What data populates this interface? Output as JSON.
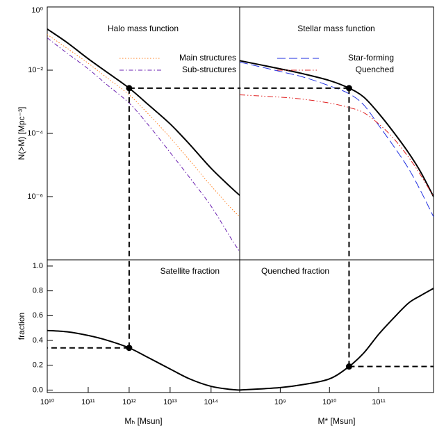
{
  "chart_data": [
    {
      "type": "line",
      "title": "Halo mass function",
      "ylabel": "N(>M) [Mpc⁻³]",
      "xlog": true,
      "ylog": true,
      "xlim": [
        10000000000.0,
        500000000000000.0
      ],
      "ylim": [
        1e-08,
        1
      ],
      "yticks": [
        {
          "value": 1,
          "label": "10⁰"
        },
        {
          "value": 0.01,
          "label": "10⁻²"
        },
        {
          "value": 0.0001,
          "label": "10⁻⁴"
        },
        {
          "value": 1e-06,
          "label": "10⁻⁶"
        }
      ],
      "x": [
        10000000000.0,
        30000000000.0,
        100000000000.0,
        300000000000.0,
        1000000000000.0,
        3000000000000.0,
        10000000000000.0,
        30000000000000.0,
        100000000000000.0,
        300000000000000.0,
        500000000000000.0
      ],
      "series": [
        {
          "color": "#000000",
          "style": "solid",
          "values": [
            0.2,
            0.076,
            0.023,
            0.0083,
            0.0027,
            0.00079,
            0.0002,
            4.5e-05,
            7.9e-06,
            2e-06,
            1.1e-06
          ]
        },
        {
          "name": "Main structures",
          "color": "#ff7f1f",
          "style": "dotted",
          "values": [
            0.135,
            0.05,
            0.0166,
            0.0055,
            0.00166,
            0.0004,
            7.4e-05,
            1.4e-05,
            2.2e-06,
            4.5e-07,
            2.3e-07
          ]
        },
        {
          "name": "Sub-structures",
          "color": "#6a1fb0",
          "style": "dashdot",
          "values": [
            0.105,
            0.035,
            0.011,
            0.0033,
            0.00091,
            0.00018,
            2.5e-05,
            4e-06,
            5e-07,
            5e-08,
            1.8e-08
          ]
        }
      ],
      "marker": {
        "x": 1000000000000.0,
        "y": 0.0027
      },
      "guides": [
        "right",
        "bottom"
      ]
    },
    {
      "type": "line",
      "title": "Stellar mass function",
      "xlog": true,
      "ylog": true,
      "xlim": [
        150000000.0,
        1300000000000.0
      ],
      "ylim": [
        1e-08,
        1
      ],
      "x": [
        150000000.0,
        1000000000.0,
        3000000000.0,
        10000000000.0,
        25000000000.0,
        50000000000.0,
        100000000000.0,
        200000000000.0,
        400000000000.0,
        700000000000.0,
        1300000000000.0
      ],
      "series": [
        {
          "color": "#000000",
          "style": "solid",
          "values": [
            0.02,
            0.011,
            0.0076,
            0.0047,
            0.0027,
            0.0014,
            0.00043,
            0.00011,
            2.5e-05,
            6.3e-06,
            1e-06
          ]
        },
        {
          "name": "Star-forming",
          "color": "#1f2fe0",
          "style": "longdash",
          "values": [
            0.018,
            0.0091,
            0.006,
            0.0032,
            0.0018,
            0.00079,
            0.00018,
            4e-05,
            7.9e-06,
            1.6e-06,
            2.3e-07
          ]
        },
        {
          "name": "Quenched",
          "color": "#e01f1f",
          "style": "dashdotdot",
          "values": [
            0.00166,
            0.0014,
            0.0012,
            0.00091,
            0.00066,
            0.00045,
            0.0002,
            7e-05,
            1.8e-05,
            5e-06,
            1e-06
          ]
        }
      ],
      "marker": {
        "x": 25000000000.0,
        "y": 0.0027
      },
      "guides": [
        "left",
        "bottom"
      ]
    },
    {
      "type": "line",
      "title": "Satellite fraction",
      "ylabel": "fraction",
      "xlabel": "Mₕ [Msun]",
      "xlog": true,
      "ylog": false,
      "xlim": [
        10000000000.0,
        500000000000000.0
      ],
      "ylim": [
        -0.02,
        1.05
      ],
      "xticks": [
        {
          "value": 10000000000.0,
          "label": "10¹⁰"
        },
        {
          "value": 100000000000.0,
          "label": "10¹¹"
        },
        {
          "value": 1000000000000.0,
          "label": "10¹²"
        },
        {
          "value": 10000000000000.0,
          "label": "10¹³"
        },
        {
          "value": 100000000000000.0,
          "label": "10¹⁴"
        }
      ],
      "yticks": [
        {
          "value": 0,
          "label": "0.0"
        },
        0.2,
        0.4,
        0.6,
        0.8,
        {
          "value": 1,
          "label": "1.0"
        }
      ],
      "x": [
        10000000000.0,
        30000000000.0,
        100000000000.0,
        300000000000.0,
        1000000000000.0,
        3000000000000.0,
        10000000000000.0,
        30000000000000.0,
        100000000000000.0,
        300000000000000.0,
        500000000000000.0
      ],
      "series": [
        {
          "color": "#000000",
          "style": "solid",
          "values": [
            0.48,
            0.47,
            0.44,
            0.4,
            0.34,
            0.26,
            0.17,
            0.09,
            0.03,
            0.005,
            0
          ]
        }
      ],
      "marker": {
        "x": 1000000000000.0,
        "y": 0.34
      },
      "guides": [
        "left",
        "top"
      ]
    },
    {
      "type": "line",
      "title": "Quenched fraction",
      "xlabel": "M* [Msun]",
      "xlog": true,
      "ylog": false,
      "xlim": [
        150000000.0,
        1300000000000.0
      ],
      "ylim": [
        -0.02,
        1.05
      ],
      "xticks": [
        {
          "value": 1000000000.0,
          "label": "10⁹"
        },
        {
          "value": 10000000000.0,
          "label": "10¹⁰"
        },
        {
          "value": 100000000000.0,
          "label": "10¹¹"
        }
      ],
      "x": [
        150000000.0,
        1000000000.0,
        3000000000.0,
        10000000000.0,
        25000000000.0,
        50000000000.0,
        100000000000.0,
        200000000000.0,
        400000000000.0,
        700000000000.0,
        1300000000000.0
      ],
      "series": [
        {
          "color": "#000000",
          "style": "solid",
          "values": [
            0,
            0.02,
            0.045,
            0.09,
            0.19,
            0.3,
            0.45,
            0.58,
            0.7,
            0.76,
            0.82
          ]
        }
      ],
      "marker": {
        "x": 25000000000.0,
        "y": 0.19
      },
      "guides": [
        "right",
        "top"
      ]
    }
  ]
}
